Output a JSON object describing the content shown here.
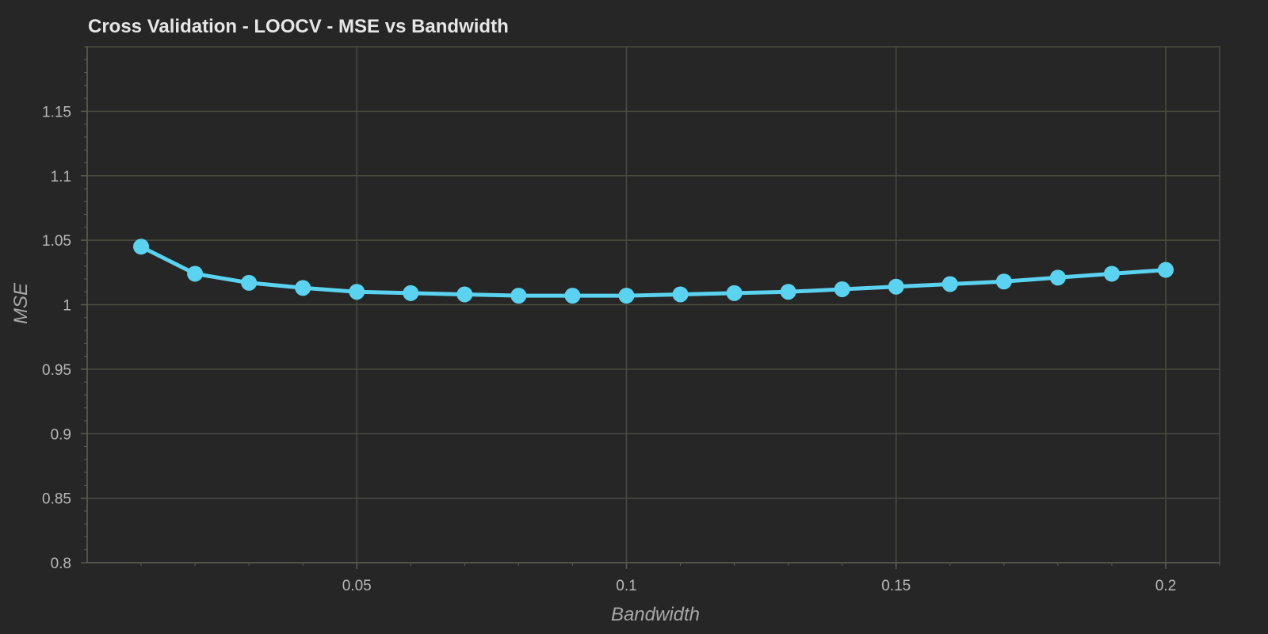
{
  "chart_data": {
    "type": "line",
    "title": "Cross Validation - LOOCV - MSE vs Bandwidth",
    "xlabel": "Bandwidth",
    "ylabel": "MSE",
    "xlim": [
      0.0,
      0.21
    ],
    "ylim": [
      0.8,
      1.2
    ],
    "x_ticks": [
      {
        "value": 0.05,
        "label": "0.05"
      },
      {
        "value": 0.1,
        "label": "0.1"
      },
      {
        "value": 0.15,
        "label": "0.15"
      },
      {
        "value": 0.2,
        "label": "0.2"
      }
    ],
    "y_ticks": [
      {
        "value": 0.8,
        "label": "0.8"
      },
      {
        "value": 0.85,
        "label": "0.85"
      },
      {
        "value": 0.9,
        "label": "0.9"
      },
      {
        "value": 0.95,
        "label": "0.95"
      },
      {
        "value": 1.0,
        "label": "1"
      },
      {
        "value": 1.05,
        "label": "1.05"
      },
      {
        "value": 1.1,
        "label": "1.1"
      },
      {
        "value": 1.15,
        "label": "1.15"
      }
    ],
    "grid": true,
    "series": [
      {
        "x": [
          0.01,
          0.02,
          0.03,
          0.04,
          0.05,
          0.06,
          0.07,
          0.08,
          0.09,
          0.1,
          0.11,
          0.12,
          0.13,
          0.14,
          0.15,
          0.16,
          0.17,
          0.18,
          0.19,
          0.2
        ],
        "values": [
          1.045,
          1.024,
          1.017,
          1.013,
          1.01,
          1.009,
          1.008,
          1.007,
          1.007,
          1.007,
          1.008,
          1.009,
          1.01,
          1.012,
          1.014,
          1.016,
          1.018,
          1.021,
          1.024,
          1.027
        ],
        "color": "#5bd3f0"
      }
    ]
  },
  "colors": {
    "background": "#262626",
    "grid": "#4a4c40",
    "axis": "#5a5c50",
    "title": "#e6e6e6",
    "tick_text": "#b8b8b8",
    "axis_label": "#a8a8a8"
  }
}
